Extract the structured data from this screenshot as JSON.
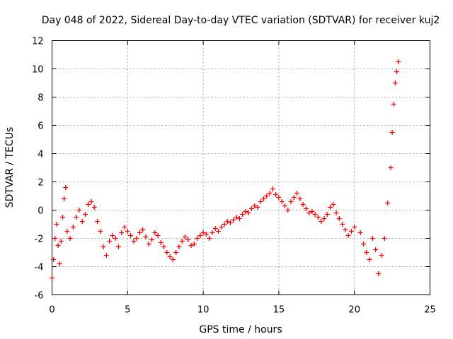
{
  "chart_data": {
    "type": "scatter",
    "title": "Day 048 of 2022, Sidereal Day-to-day VTEC variation (SDTVAR) for receiver kuj2",
    "xlabel": "GPS time / hours",
    "ylabel": "SDTVAR / TECUs",
    "xlim": [
      0,
      25
    ],
    "ylim": [
      -6,
      12
    ],
    "xticks": [
      0,
      5,
      10,
      15,
      20,
      25
    ],
    "yticks": [
      -6,
      -4,
      -2,
      0,
      2,
      4,
      6,
      8,
      10,
      12
    ],
    "grid": true,
    "marker": "+",
    "series": [
      {
        "name": "SDTVAR",
        "color": "#ff0000",
        "x": [
          0.0,
          0.1,
          0.2,
          0.3,
          0.4,
          0.5,
          0.6,
          0.7,
          0.8,
          0.9,
          1.0,
          1.2,
          1.4,
          1.6,
          1.8,
          2.0,
          2.2,
          2.4,
          2.6,
          2.8,
          3.0,
          3.2,
          3.4,
          3.6,
          3.8,
          4.0,
          4.2,
          4.4,
          4.6,
          4.8,
          5.0,
          5.2,
          5.4,
          5.6,
          5.8,
          6.0,
          6.2,
          6.4,
          6.6,
          6.8,
          7.0,
          7.2,
          7.4,
          7.6,
          7.8,
          8.0,
          8.2,
          8.4,
          8.6,
          8.8,
          9.0,
          9.2,
          9.4,
          9.6,
          9.8,
          10.0,
          10.2,
          10.4,
          10.6,
          10.8,
          11.0,
          11.2,
          11.4,
          11.6,
          11.8,
          12.0,
          12.2,
          12.4,
          12.6,
          12.8,
          13.0,
          13.2,
          13.4,
          13.6,
          13.8,
          14.0,
          14.2,
          14.4,
          14.6,
          14.8,
          15.0,
          15.2,
          15.4,
          15.6,
          15.8,
          16.0,
          16.2,
          16.4,
          16.6,
          16.8,
          17.0,
          17.2,
          17.4,
          17.6,
          17.8,
          18.0,
          18.2,
          18.4,
          18.6,
          18.8,
          19.0,
          19.2,
          19.4,
          19.6,
          19.8,
          20.0,
          20.4,
          20.6,
          20.8,
          21.0,
          21.2,
          21.4,
          21.6,
          21.8,
          22.0,
          22.2,
          22.4,
          22.5,
          22.6,
          22.7,
          22.8,
          22.9
        ],
        "y": [
          -4.8,
          -3.5,
          -2.0,
          -1.0,
          -2.5,
          -3.8,
          -2.2,
          -0.5,
          0.8,
          1.6,
          -1.5,
          -2.0,
          -1.2,
          -0.5,
          0.0,
          -0.8,
          -0.3,
          0.4,
          0.6,
          0.2,
          -0.8,
          -1.5,
          -2.6,
          -3.2,
          -2.2,
          -1.8,
          -2.0,
          -2.6,
          -1.6,
          -1.2,
          -1.5,
          -1.8,
          -2.2,
          -2.0,
          -1.6,
          -1.4,
          -1.9,
          -2.4,
          -2.1,
          -1.6,
          -1.8,
          -2.3,
          -2.6,
          -3.0,
          -3.3,
          -3.5,
          -3.0,
          -2.6,
          -2.2,
          -1.9,
          -2.1,
          -2.5,
          -2.4,
          -2.0,
          -1.8,
          -1.6,
          -1.7,
          -2.0,
          -1.6,
          -1.3,
          -1.5,
          -1.2,
          -1.0,
          -0.8,
          -0.9,
          -0.7,
          -0.5,
          -0.6,
          -0.3,
          -0.1,
          -0.2,
          0.1,
          0.3,
          0.2,
          0.6,
          0.8,
          1.0,
          1.2,
          1.5,
          1.1,
          0.9,
          0.6,
          0.3,
          0.0,
          0.6,
          0.9,
          1.2,
          0.8,
          0.4,
          0.1,
          -0.2,
          -0.1,
          -0.3,
          -0.5,
          -0.8,
          -0.6,
          -0.3,
          0.2,
          0.4,
          -0.2,
          -0.6,
          -1.0,
          -1.4,
          -1.8,
          -1.5,
          -1.2,
          -1.6,
          -2.4,
          -3.0,
          -3.5,
          -2.0,
          -2.8,
          -4.5,
          -3.2,
          -2.0,
          0.5,
          3.0,
          5.5,
          7.5,
          9.0,
          9.8,
          10.5
        ]
      }
    ]
  }
}
